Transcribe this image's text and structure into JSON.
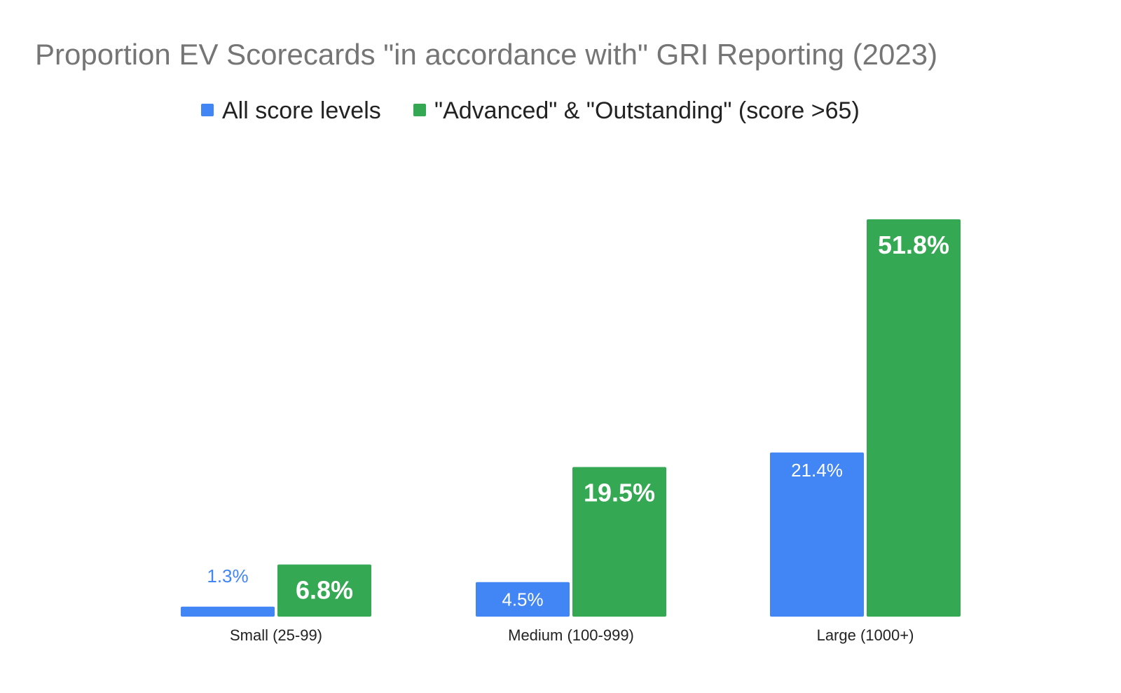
{
  "chart_data": {
    "type": "bar",
    "title": "Proportion EV Scorecards \"in accordance with\" GRI Reporting (2023)",
    "xlabel": "",
    "ylabel": "",
    "categories": [
      "Small (25-99)",
      "Medium (100-999)",
      "Large (1000+)"
    ],
    "series": [
      {
        "name": "All score levels",
        "color": "#4285f4",
        "values": [
          1.3,
          4.5,
          21.4
        ],
        "labels": [
          "1.3%",
          "4.5%",
          "21.4%"
        ]
      },
      {
        "name": "\"Advanced\" & \"Outstanding\" (score >65)",
        "color": "#34a853",
        "values": [
          6.8,
          19.5,
          51.8
        ],
        "labels": [
          "6.8%",
          "19.5%",
          "51.8%"
        ]
      }
    ],
    "ylim": [
      0,
      52
    ],
    "grid": false,
    "legend": "top-center"
  },
  "colors": {
    "title": "#757575",
    "legend_text": "#222222",
    "tick_label": "#222222",
    "label_on_bar": "#ffffff"
  }
}
